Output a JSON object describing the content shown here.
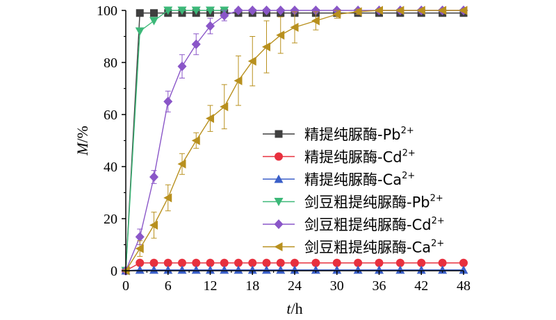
{
  "chart_data": {
    "type": "line",
    "title": "",
    "xlabel": {
      "italic": "t",
      "rest": "/h"
    },
    "ylabel": {
      "italic": "M",
      "rest": "/%"
    },
    "xlim": [
      0,
      48
    ],
    "ylim": [
      0,
      100
    ],
    "x_ticks": [
      "0",
      "6",
      "12",
      "18",
      "24",
      "30",
      "36",
      "42",
      "48"
    ],
    "y_ticks": [
      "0",
      "20",
      "40",
      "60",
      "80",
      "100"
    ],
    "legend_position": "center-right",
    "series": [
      {
        "name": "精提纯脲酶-Pb",
        "superscript": "2+",
        "color": "#3f3f3f",
        "marker": "square",
        "x": [
          0,
          2,
          4,
          6,
          8,
          10,
          12,
          14,
          16,
          18,
          20,
          22,
          24,
          27,
          30,
          33,
          36,
          39,
          42,
          45,
          48
        ],
        "y": [
          0,
          99,
          99,
          99,
          99,
          99,
          99,
          99,
          99,
          99,
          99,
          99,
          99,
          99,
          99,
          99,
          99,
          99,
          99,
          99,
          99
        ]
      },
      {
        "name": "精提纯脲酶-Cd",
        "superscript": "2+",
        "color": "#e8303e",
        "marker": "circle",
        "x": [
          0,
          2,
          4,
          6,
          8,
          10,
          12,
          14,
          16,
          18,
          20,
          22,
          24,
          27,
          30,
          33,
          36,
          39,
          42,
          45,
          48
        ],
        "y": [
          0,
          3,
          3,
          3,
          3,
          3,
          3,
          3,
          3,
          3,
          3,
          3,
          3,
          3,
          3,
          3,
          3,
          3,
          3,
          3,
          3
        ]
      },
      {
        "name": "精提纯脲酶-Ca",
        "superscript": "2+",
        "color": "#3a5fc8",
        "marker": "triangle-up",
        "x": [
          0,
          2,
          4,
          6,
          8,
          10,
          12,
          14,
          16,
          18,
          20,
          22,
          24,
          27,
          30,
          33,
          36,
          39,
          42,
          45,
          48
        ],
        "y": [
          0,
          0.3,
          0.3,
          0.3,
          0.3,
          0.3,
          0.3,
          0.3,
          0.3,
          0.3,
          0.3,
          0.3,
          0.3,
          0.3,
          0.3,
          0.3,
          0.3,
          0.3,
          0.3,
          0.3,
          0.3
        ]
      },
      {
        "name": "剑豆粗提纯脲酶-Pb",
        "superscript": "2+",
        "color": "#3cb878",
        "marker": "triangle-down",
        "x": [
          0,
          2,
          4,
          6,
          8,
          10,
          12,
          14
        ],
        "y": [
          0,
          92,
          96,
          100,
          100,
          100,
          100,
          100
        ]
      },
      {
        "name": "剑豆粗提纯脲酶-Cd",
        "superscript": "2+",
        "color": "#8a56c8",
        "marker": "diamond",
        "x": [
          0,
          2,
          4,
          6,
          8,
          10,
          12,
          14,
          16,
          18,
          20,
          22,
          24,
          27,
          30,
          33,
          36,
          39,
          42,
          45,
          48
        ],
        "y": [
          0,
          13,
          36,
          65,
          78.5,
          87,
          94,
          98,
          100,
          100,
          100,
          100,
          100,
          100,
          100,
          100,
          100,
          100,
          100,
          100,
          100
        ],
        "err": [
          0,
          3,
          2.5,
          4,
          4.5,
          4,
          3,
          2,
          0.5,
          0.5,
          0.5,
          0.5,
          0.5,
          0.5,
          0.5,
          0.5,
          0.5,
          0.5,
          0.5,
          0.5,
          0.5
        ]
      },
      {
        "name": "剑豆粗提纯脲酶-Ca",
        "superscript": "2+",
        "color": "#b8901e",
        "marker": "triangle-left",
        "x": [
          0,
          2,
          4,
          6,
          8,
          10,
          12,
          14,
          16,
          18,
          20,
          22,
          24,
          27,
          30,
          33,
          36,
          39,
          42,
          45,
          48
        ],
        "y": [
          0,
          8.5,
          17.5,
          28,
          41,
          50,
          58.5,
          63,
          73,
          80.5,
          86,
          90.5,
          93.5,
          96,
          98.5,
          99.5,
          100,
          100,
          100,
          100,
          100
        ],
        "err": [
          0,
          3,
          5,
          5,
          4,
          3,
          5,
          8.5,
          9.5,
          9.5,
          10,
          7,
          6,
          3.5,
          1.5,
          1,
          0.5,
          0.5,
          0.5,
          0.5,
          0.5
        ]
      }
    ]
  }
}
